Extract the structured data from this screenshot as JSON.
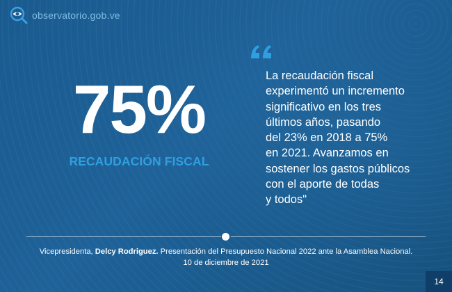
{
  "header": {
    "logo_text": "observatorio.gob.ve",
    "logo_icon": "magnifier-eye-icon"
  },
  "stat": {
    "value": "75%",
    "label": "RECAUDACIÓN FISCAL"
  },
  "quote": {
    "icon": "quote-marks-icon",
    "lines": [
      "La recaudación fiscal",
      "experimentó un incremento",
      "significativo en los tres",
      "últimos años, pasando",
      "del 23% en 2018 a 75%",
      "en 2021. Avanzamos en",
      "sostener los gastos públicos",
      "con el aporte de todas",
      "y todos\""
    ]
  },
  "caption": {
    "role": "Vicepresidenta,",
    "name": "Delcy Rodriguez.",
    "description": "Presentación del Presupuesto Nacional 2022 ante la Asamblea Nacional.",
    "date": "10 de diciembre de 2021"
  },
  "page_number": "14",
  "colors": {
    "background": "#1f5f93",
    "accent": "#2f9fe0",
    "page_badge": "#0f3f69"
  }
}
